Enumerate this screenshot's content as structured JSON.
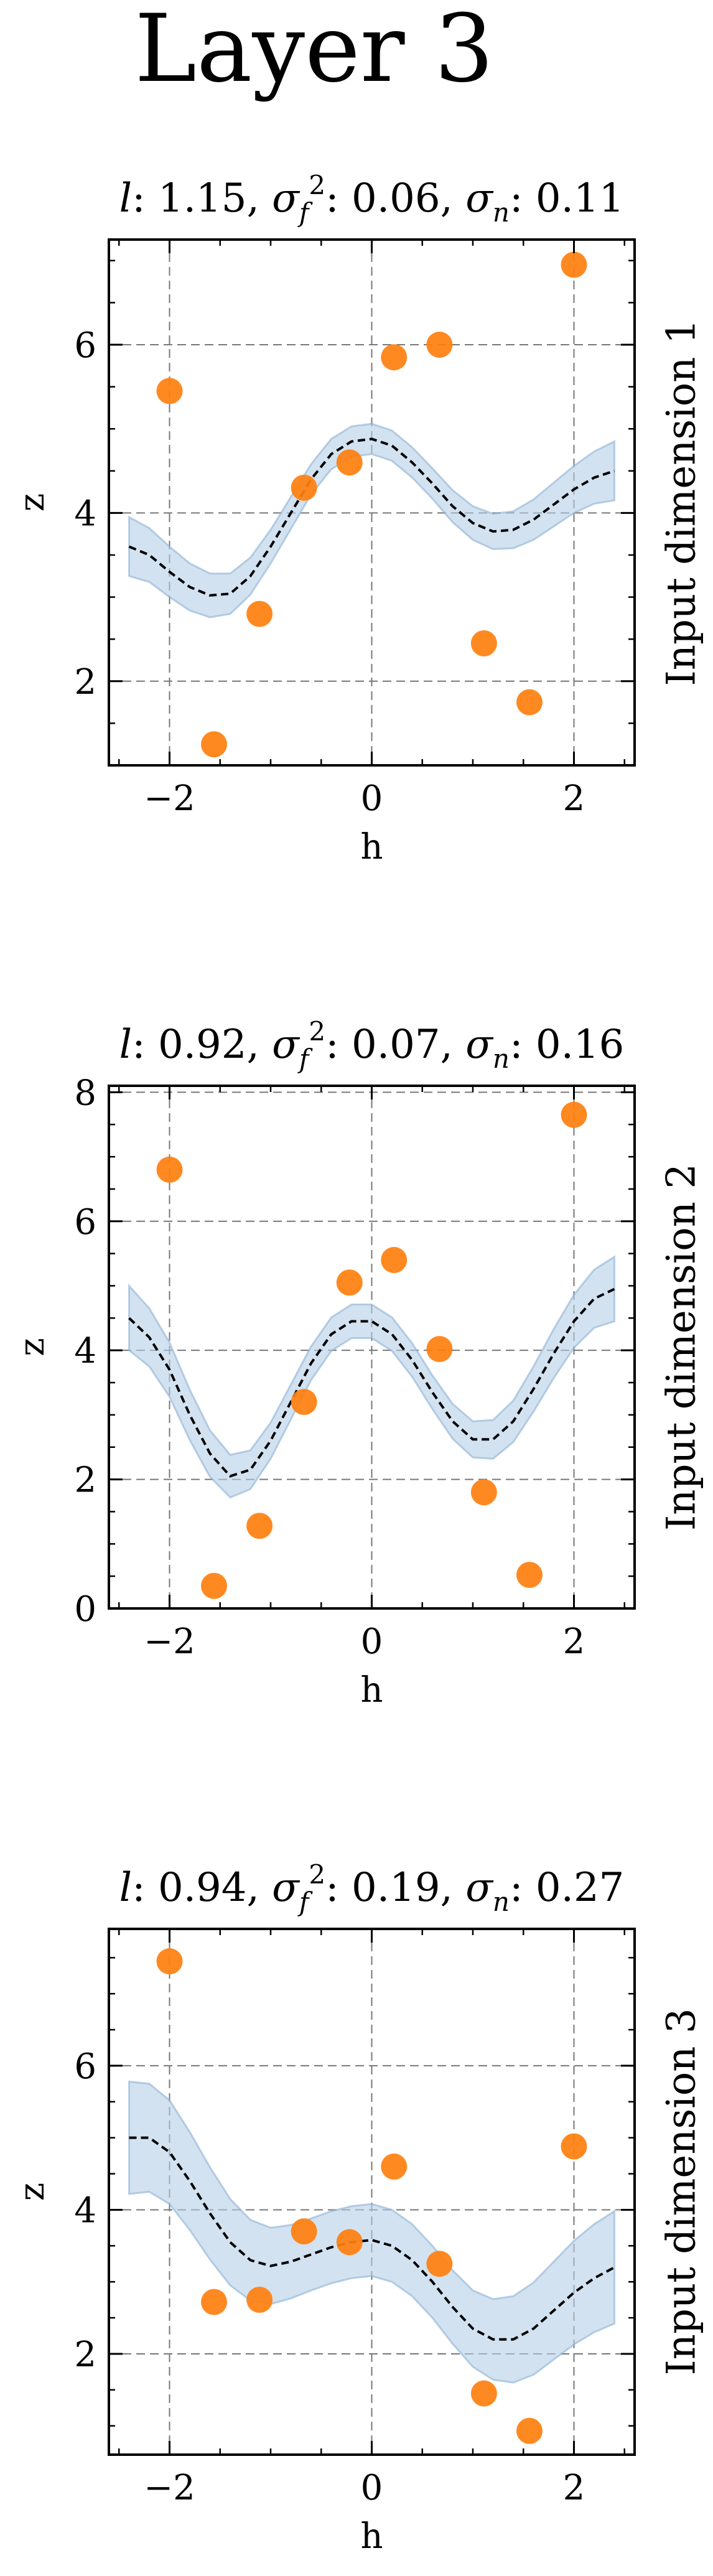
{
  "figure": {
    "title": "Layer 3"
  },
  "chart_data": [
    {
      "type": "scatter",
      "title": "l: 1.15, σf²: 0.06, σn: 0.11",
      "title_parts": {
        "l": "1.15",
        "sf2": "0.06",
        "sn": "0.11"
      },
      "xlabel": "h",
      "ylabel": "z",
      "side_label": "Input dimension 1",
      "xlim": [
        -2.6,
        2.6
      ],
      "ylim": [
        1.0,
        7.25
      ],
      "xticks": [
        -2,
        0,
        2
      ],
      "xtick_labels": [
        "−2",
        "0",
        "2"
      ],
      "yticks": [
        2,
        4,
        6
      ],
      "ytick_labels": [
        "2",
        "4",
        "6"
      ],
      "grid": true,
      "points": {
        "x": [
          -2.0,
          -1.56,
          -1.11,
          -0.67,
          -0.22,
          0.22,
          0.67,
          1.11,
          1.56,
          2.0
        ],
        "y": [
          5.45,
          1.25,
          2.8,
          4.3,
          4.6,
          5.85,
          6.0,
          2.45,
          1.75,
          6.95
        ]
      },
      "mean": {
        "x": [
          -2.4,
          -2.2,
          -2.0,
          -1.8,
          -1.6,
          -1.4,
          -1.2,
          -1.0,
          -0.8,
          -0.6,
          -0.4,
          -0.2,
          0.0,
          0.2,
          0.4,
          0.6,
          0.8,
          1.0,
          1.2,
          1.4,
          1.6,
          1.8,
          2.0,
          2.2,
          2.4
        ],
        "y": [
          3.6,
          3.5,
          3.3,
          3.12,
          3.02,
          3.04,
          3.25,
          3.6,
          4.0,
          4.4,
          4.7,
          4.85,
          4.88,
          4.8,
          4.6,
          4.35,
          4.08,
          3.88,
          3.78,
          3.8,
          3.92,
          4.1,
          4.28,
          4.42,
          4.5
        ]
      },
      "band_halfwidth": [
        0.35,
        0.32,
        0.3,
        0.28,
        0.26,
        0.24,
        0.22,
        0.2,
        0.19,
        0.18,
        0.18,
        0.18,
        0.18,
        0.18,
        0.18,
        0.18,
        0.19,
        0.2,
        0.21,
        0.22,
        0.24,
        0.26,
        0.28,
        0.31,
        0.35
      ],
      "colors": {
        "points": "#ff7f0e",
        "band": "#b5cfe6",
        "mean": "#000000",
        "grid": "#777777"
      }
    },
    {
      "type": "scatter",
      "title": "l: 0.92, σf²: 0.07, σn: 0.16",
      "title_parts": {
        "l": "0.92",
        "sf2": "0.07",
        "sn": "0.16"
      },
      "xlabel": "h",
      "ylabel": "z",
      "side_label": "Input dimension 2",
      "xlim": [
        -2.6,
        2.6
      ],
      "ylim": [
        0.0,
        8.1
      ],
      "xticks": [
        -2,
        0,
        2
      ],
      "xtick_labels": [
        "−2",
        "0",
        "2"
      ],
      "yticks": [
        0,
        2,
        4,
        6,
        8
      ],
      "ytick_labels": [
        "0",
        "2",
        "4",
        "6",
        "8"
      ],
      "grid": true,
      "points": {
        "x": [
          -2.0,
          -1.56,
          -1.11,
          -0.67,
          -0.22,
          0.22,
          0.67,
          1.11,
          1.56,
          2.0
        ],
        "y": [
          6.8,
          0.35,
          1.28,
          3.2,
          5.05,
          5.4,
          4.02,
          1.8,
          0.52,
          7.65
        ]
      },
      "mean": {
        "x": [
          -2.4,
          -2.2,
          -2.0,
          -1.8,
          -1.6,
          -1.4,
          -1.2,
          -1.0,
          -0.8,
          -0.6,
          -0.4,
          -0.2,
          0.0,
          0.2,
          0.4,
          0.6,
          0.8,
          1.0,
          1.2,
          1.4,
          1.6,
          1.8,
          2.0,
          2.2,
          2.4
        ],
        "y": [
          4.5,
          4.2,
          3.7,
          3.0,
          2.4,
          2.05,
          2.15,
          2.6,
          3.2,
          3.8,
          4.25,
          4.45,
          4.45,
          4.25,
          3.85,
          3.35,
          2.9,
          2.62,
          2.62,
          2.9,
          3.4,
          3.95,
          4.45,
          4.8,
          4.95
        ]
      },
      "band_halfwidth": [
        0.5,
        0.45,
        0.42,
        0.39,
        0.36,
        0.33,
        0.3,
        0.28,
        0.27,
        0.26,
        0.26,
        0.26,
        0.26,
        0.26,
        0.26,
        0.26,
        0.27,
        0.28,
        0.3,
        0.32,
        0.35,
        0.38,
        0.41,
        0.45,
        0.5
      ],
      "colors": {
        "points": "#ff7f0e",
        "band": "#b5cfe6",
        "mean": "#000000",
        "grid": "#777777"
      }
    },
    {
      "type": "scatter",
      "title": "l: 0.94, σf²: 0.19, σn: 0.27",
      "title_parts": {
        "l": "0.94",
        "sf2": "0.19",
        "sn": "0.27"
      },
      "xlabel": "h",
      "ylabel": "z",
      "side_label": "Input dimension 3",
      "xlim": [
        -2.6,
        2.6
      ],
      "ylim": [
        0.6,
        7.9
      ],
      "xticks": [
        -2,
        0,
        2
      ],
      "xtick_labels": [
        "−2",
        "0",
        "2"
      ],
      "yticks": [
        2,
        4,
        6
      ],
      "ytick_labels": [
        "2",
        "4",
        "6"
      ],
      "grid": true,
      "points": {
        "x": [
          -2.0,
          -1.56,
          -1.11,
          -0.67,
          -0.22,
          0.22,
          0.67,
          1.11,
          1.56,
          2.0
        ],
        "y": [
          7.45,
          2.72,
          2.75,
          3.7,
          3.55,
          4.6,
          3.25,
          1.45,
          0.93,
          4.88
        ]
      },
      "mean": {
        "x": [
          -2.4,
          -2.2,
          -2.0,
          -1.8,
          -1.6,
          -1.4,
          -1.2,
          -1.0,
          -0.8,
          -0.6,
          -0.4,
          -0.2,
          0.0,
          0.2,
          0.4,
          0.6,
          0.8,
          1.0,
          1.2,
          1.4,
          1.6,
          1.8,
          2.0,
          2.2,
          2.4
        ],
        "y": [
          5.0,
          5.0,
          4.8,
          4.4,
          3.95,
          3.55,
          3.3,
          3.22,
          3.28,
          3.38,
          3.48,
          3.55,
          3.58,
          3.5,
          3.3,
          3.0,
          2.65,
          2.35,
          2.2,
          2.2,
          2.35,
          2.6,
          2.85,
          3.05,
          3.2
        ]
      },
      "band_halfwidth": [
        0.78,
        0.75,
        0.72,
        0.68,
        0.64,
        0.6,
        0.56,
        0.53,
        0.51,
        0.5,
        0.5,
        0.5,
        0.5,
        0.5,
        0.5,
        0.5,
        0.51,
        0.53,
        0.56,
        0.6,
        0.64,
        0.68,
        0.72,
        0.75,
        0.78
      ],
      "colors": {
        "points": "#ff7f0e",
        "band": "#b5cfe6",
        "mean": "#000000",
        "grid": "#777777"
      }
    }
  ]
}
